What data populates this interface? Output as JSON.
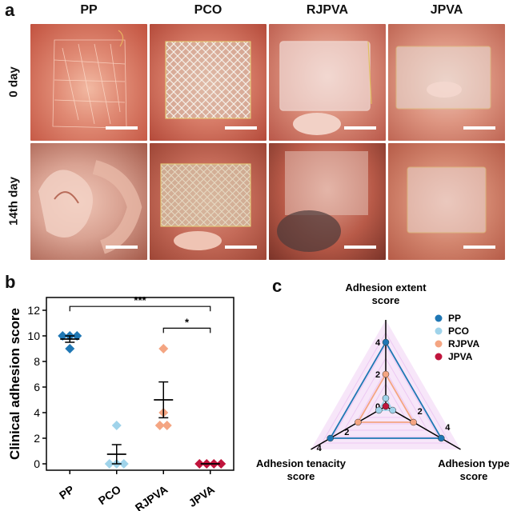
{
  "panel_a": {
    "letter": "a",
    "columns": [
      "PP",
      "PCO",
      "RJPVA",
      "JPVA"
    ],
    "rows": [
      "0 day",
      "14th day"
    ]
  },
  "panel_b": {
    "letter": "b",
    "chart_data": {
      "type": "scatter",
      "categories": [
        "PP",
        "PCO",
        "RJPVA",
        "JPVA"
      ],
      "ylabel": "Clinical adhesion score",
      "ylim": [
        -0.5,
        13
      ],
      "yticks": [
        0,
        2,
        4,
        6,
        8,
        10,
        12
      ],
      "points": [
        {
          "group": "PP",
          "values": [
            10,
            10,
            9,
            10
          ],
          "mean": 9.75,
          "sem": 0.25,
          "color": "#1f77b4"
        },
        {
          "group": "PCO",
          "values": [
            3,
            0,
            0,
            0
          ],
          "mean": 0.75,
          "sem": 0.75,
          "color": "#9fd3ea"
        },
        {
          "group": "RJPVA",
          "values": [
            9,
            4,
            3,
            3
          ],
          "mean": 5,
          "sem": 1.4,
          "color": "#f4a582"
        },
        {
          "group": "JPVA",
          "values": [
            0,
            0,
            0,
            0
          ],
          "mean": 0,
          "sem": 0,
          "color": "#c0143c"
        }
      ],
      "significance": [
        {
          "from": "PP",
          "to": "JPVA",
          "label": "***"
        },
        {
          "from": "RJPVA",
          "to": "JPVA",
          "label": "*"
        }
      ]
    }
  },
  "panel_c": {
    "letter": "c",
    "chart_data": {
      "type": "radar",
      "axes": [
        {
          "label_line1": "Adhesion extent",
          "label_line2": "score"
        },
        {
          "label_line1": "Adhesion type",
          "label_line2": "score"
        },
        {
          "label_line1": "Adhesion tenacity",
          "label_line2": "score"
        }
      ],
      "rmax": 4,
      "tick_labels": [
        "0",
        "2",
        "4"
      ],
      "series": [
        {
          "name": "PP",
          "values": [
            4,
            4,
            4
          ],
          "color": "#1f77b4"
        },
        {
          "name": "PCO",
          "values": [
            0.5,
            0.5,
            0.5
          ],
          "color": "#9fd3ea"
        },
        {
          "name": "RJPVA",
          "values": [
            2,
            2,
            2
          ],
          "color": "#f4a582"
        },
        {
          "name": "JPVA",
          "values": [
            0,
            0,
            0
          ],
          "color": "#c0143c"
        }
      ]
    }
  }
}
